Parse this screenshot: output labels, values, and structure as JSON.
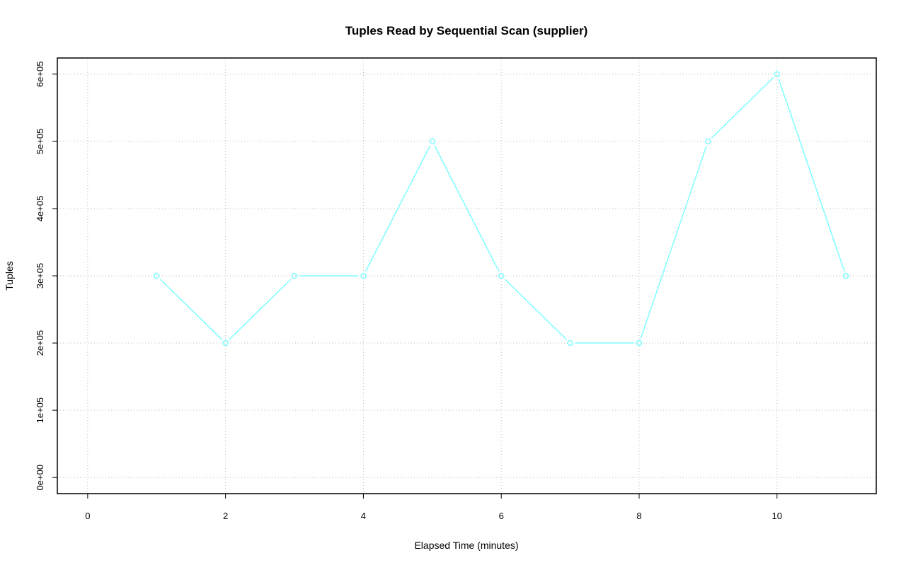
{
  "chart_data": {
    "type": "line",
    "title": "Tuples Read by Sequential Scan (supplier)",
    "xlabel": "Elapsed Time (minutes)",
    "ylabel": "Tuples",
    "x": [
      1,
      2,
      3,
      4,
      5,
      6,
      7,
      8,
      9,
      10,
      11
    ],
    "series": [
      {
        "values": [
          300000,
          200000,
          300000,
          300000,
          500000,
          300000,
          200000,
          200000,
          500000,
          600000,
          300000
        ],
        "color": "#7fffff"
      }
    ],
    "xlim": [
      0,
      11
    ],
    "ylim": [
      0,
      600000
    ],
    "xticks": [
      0,
      2,
      4,
      6,
      8,
      10
    ],
    "xtick_labels": [
      "0",
      "2",
      "4",
      "6",
      "8",
      "10"
    ],
    "yticks": [
      0,
      100000,
      200000,
      300000,
      400000,
      500000,
      600000
    ],
    "ytick_labels": [
      "0e+00",
      "1e+05",
      "2e+05",
      "3e+05",
      "4e+05",
      "5e+05",
      "6e+05"
    ],
    "grid": true,
    "grid_color": "#bebebe",
    "markers": "open-circle"
  }
}
